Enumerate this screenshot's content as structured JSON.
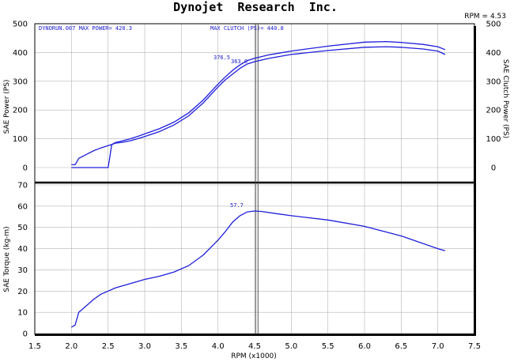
{
  "header": {
    "title": "Dynojet  Research  Inc.",
    "cursor_readout": "RPM = 4.53"
  },
  "annotations": {
    "run_info": "DYNORUN.007  MAX POWER= 420.3",
    "max_clutch": "MAX CLUTCH (PS)= 440.8",
    "power_upper_label": "376.5",
    "power_lower_label": "363.0",
    "torque_label": "57.7"
  },
  "colors": {
    "curve": "#1e1edc",
    "annotation": "#1a1acc",
    "grid": "#b4b4b4",
    "cursor": "#555555"
  },
  "chart_data": [
    {
      "type": "line",
      "panel": "top",
      "ylabel_left": "SAE Power (PS)",
      "ylabel_right": "SAE Clutch Power (PS)",
      "xlim": [
        1.5,
        7.5
      ],
      "ylim": [
        -50,
        500
      ],
      "yticks": [
        0,
        100,
        200,
        300,
        400,
        500
      ],
      "yticks_right": [
        0,
        100,
        200,
        300,
        400,
        500
      ],
      "grid": true,
      "cursor_x": 4.53,
      "series": [
        {
          "role": "clutch-power",
          "x": [
            2.0,
            2.05,
            2.1,
            2.2,
            2.3,
            2.4,
            2.5,
            2.55,
            2.6,
            2.7,
            2.8,
            2.9,
            3.0,
            3.2,
            3.4,
            3.6,
            3.8,
            4.0,
            4.1,
            4.2,
            4.3,
            4.4,
            4.5,
            4.7,
            5.0,
            5.5,
            6.0,
            6.3,
            6.5,
            6.8,
            7.0,
            7.1
          ],
          "y": [
            10,
            10,
            32,
            45,
            58,
            68,
            76,
            80,
            87,
            93,
            100,
            108,
            117,
            135,
            158,
            190,
            235,
            290,
            315,
            338,
            357,
            372,
            380,
            392,
            405,
            422,
            436,
            438,
            435,
            428,
            420,
            410
          ]
        },
        {
          "role": "power",
          "x": [
            2.0,
            2.5,
            2.52,
            2.55,
            2.6,
            2.7,
            2.8,
            2.9,
            3.0,
            3.2,
            3.4,
            3.6,
            3.8,
            4.0,
            4.1,
            4.2,
            4.3,
            4.4,
            4.5,
            4.7,
            5.0,
            5.5,
            6.0,
            6.3,
            6.5,
            6.8,
            7.0,
            7.1
          ],
          "y": [
            0,
            0,
            30,
            80,
            85,
            88,
            93,
            100,
            108,
            125,
            148,
            180,
            225,
            280,
            305,
            325,
            345,
            360,
            368,
            380,
            393,
            407,
            418,
            420,
            418,
            412,
            405,
            393
          ]
        }
      ]
    },
    {
      "type": "line",
      "panel": "bottom",
      "xlabel": "RPM (x1000)",
      "ylabel_left": "SAE Torque (kg-m)",
      "xlim": [
        1.5,
        7.5
      ],
      "ylim": [
        0,
        72
      ],
      "xticks": [
        1.5,
        2.0,
        2.5,
        3.0,
        3.5,
        4.0,
        4.5,
        5.0,
        5.5,
        6.0,
        6.5,
        7.0,
        7.5
      ],
      "yticks": [
        0,
        10,
        20,
        30,
        40,
        50,
        60,
        70
      ],
      "grid": true,
      "cursor_x": 4.53,
      "series": [
        {
          "role": "torque",
          "x": [
            2.0,
            2.05,
            2.1,
            2.2,
            2.3,
            2.4,
            2.5,
            2.6,
            2.8,
            3.0,
            3.2,
            3.4,
            3.6,
            3.8,
            4.0,
            4.1,
            4.2,
            4.3,
            4.4,
            4.5,
            4.6,
            4.8,
            5.0,
            5.5,
            6.0,
            6.5,
            7.0,
            7.1
          ],
          "y": [
            3,
            4,
            10,
            13,
            16,
            18.5,
            20,
            21.5,
            23.5,
            25.5,
            27,
            29,
            32,
            37,
            44,
            48,
            52.5,
            55.5,
            57.3,
            57.7,
            57.5,
            56.5,
            55.5,
            53.5,
            50.5,
            46,
            40,
            39
          ]
        }
      ]
    }
  ]
}
